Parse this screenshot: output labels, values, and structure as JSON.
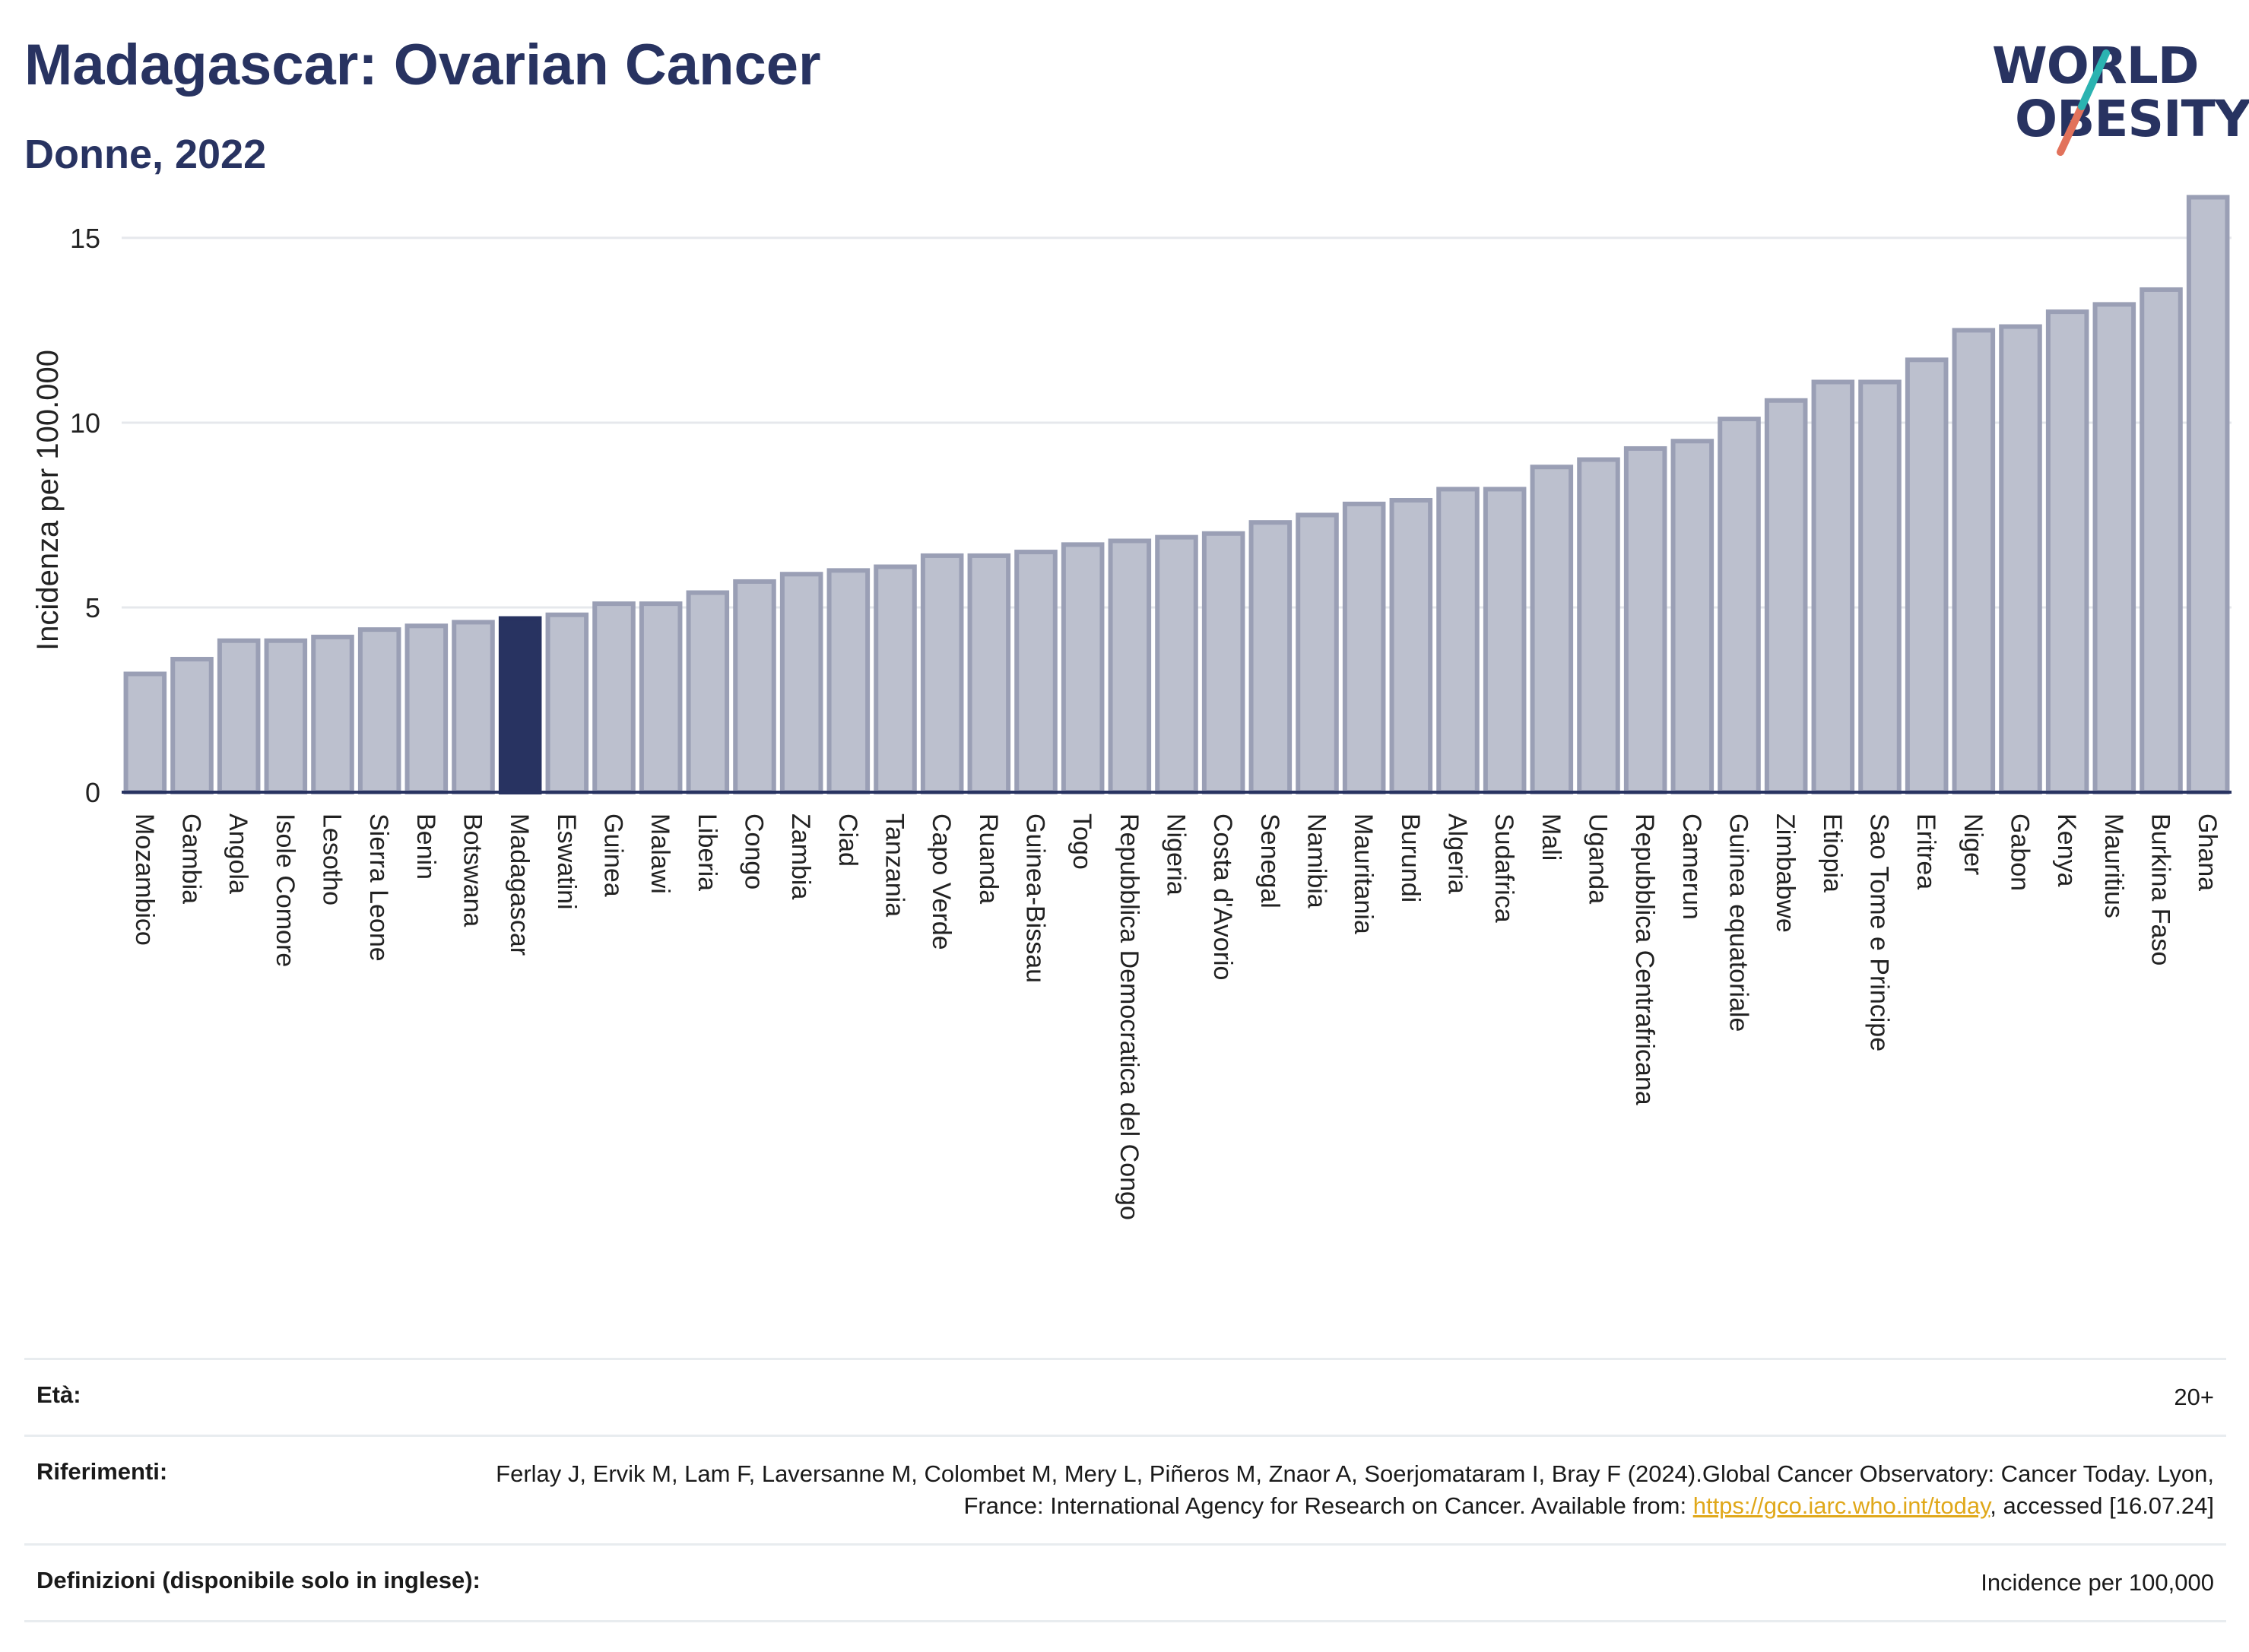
{
  "header": {
    "title": "Madagascar: Ovarian Cancer",
    "subtitle": "Donne, 2022"
  },
  "logo": {
    "line1": "WORLD",
    "line2": "OBESITY"
  },
  "chart_data": {
    "type": "bar",
    "ylabel": "Incidenza per 100.000",
    "xlabel": "",
    "ylim": [
      0,
      16.5
    ],
    "yticks": [
      0,
      5,
      10,
      15
    ],
    "grid": true,
    "highlight": "Madagascar",
    "colors": {
      "bar": "#bcc0ce",
      "bar_edge": "#9a9fb5",
      "highlight": "#283361"
    },
    "categories": [
      "Mozambico",
      "Gambia",
      "Angola",
      "Isole Comore",
      "Lesotho",
      "Sierra Leone",
      "Benin",
      "Botswana",
      "Madagascar",
      "Eswatini",
      "Guinea",
      "Malawi",
      "Liberia",
      "Congo",
      "Zambia",
      "Ciad",
      "Tanzania",
      "Capo Verde",
      "Ruanda",
      "Guinea-Bissau",
      "Togo",
      "Repubblica Democratica del Congo",
      "Nigeria",
      "Costa d'Avorio",
      "Senegal",
      "Namibia",
      "Mauritania",
      "Burundi",
      "Algeria",
      "Sudafrica",
      "Mali",
      "Uganda",
      "Repubblica Centrafricana",
      "Camerun",
      "Guinea equatoriale",
      "Zimbabwe",
      "Etiopia",
      "Sao Tome e Principe",
      "Eritrea",
      "Niger",
      "Gabon",
      "Kenya",
      "Mauritius",
      "Burkina Faso",
      "Ghana"
    ],
    "values": [
      3.2,
      3.6,
      4.1,
      4.1,
      4.2,
      4.4,
      4.5,
      4.6,
      4.7,
      4.8,
      5.1,
      5.1,
      5.4,
      5.7,
      5.9,
      6.0,
      6.1,
      6.4,
      6.4,
      6.5,
      6.7,
      6.8,
      6.9,
      7.0,
      7.3,
      7.5,
      7.8,
      7.9,
      8.2,
      8.2,
      8.8,
      9.0,
      9.3,
      9.5,
      10.1,
      10.6,
      11.1,
      11.1,
      11.7,
      12.5,
      12.6,
      13.0,
      13.2,
      13.6,
      16.1
    ]
  },
  "meta": {
    "age_label": "Età:",
    "age_value": "20+",
    "ref_label": "Riferimenti:",
    "ref_text_1": "Ferlay J, Ervik M, Lam F, Laversanne M, Colombet M, Mery L, Piñeros M, Znaor A, Soerjomataram I, Bray F (2024).Global Cancer Observatory: Cancer Today. Lyon, France: International Agency for Research on Cancer. Available from: ",
    "ref_link": "https://gco.iarc.who.int/today",
    "ref_text_2": ", accessed [16.07.24]",
    "def_label": "Definizioni (disponibile solo in inglese):",
    "def_value": "Incidence per 100,000"
  }
}
